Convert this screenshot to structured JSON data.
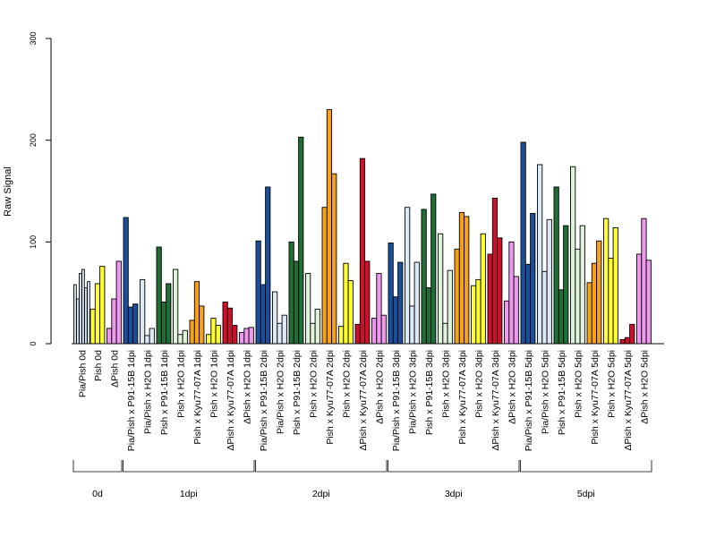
{
  "chart_data": {
    "type": "bar",
    "title": "",
    "ylabel": "Raw Signal",
    "xlabel": "",
    "ylim": [
      0,
      300
    ],
    "yticks": [
      0,
      100,
      200,
      300
    ],
    "grid": false,
    "colors": {
      "Pia/Pish": "#dce9f7",
      "Pish": "#ffff33",
      "ΔPish": "#ee99ee",
      "P91-15B": "#1a4f9c",
      "H2O_pia": "#dce9f7",
      "P91-15B_pish": "#1f6e35",
      "H2O_pish": "#e0f2dc",
      "Kyu77-07A": "#f5a21a",
      "Kyu77-07A_pish": "#ffff33",
      "Kyu77-07A_delta": "#d0102a",
      "H2O_delta": "#ee99ee"
    },
    "categories": [
      {
        "label": "Pia/Pish 0d",
        "group": "0d",
        "color": "#dce9f7",
        "values": [
          58,
          44,
          69,
          73,
          55,
          61
        ]
      },
      {
        "label": "Pish 0d",
        "group": "0d",
        "color": "#ffff33",
        "values": [
          34,
          59,
          76
        ]
      },
      {
        "label": "ΔPish 0d",
        "group": "0d",
        "color": "#ee99ee",
        "values": [
          15,
          44,
          81
        ]
      },
      {
        "label": "Pia/Pish x P91-15B 1dpi",
        "group": "1dpi",
        "color": "#1a4f9c",
        "values": [
          124,
          36,
          39
        ]
      },
      {
        "label": "Pia/Pish x H2O 1dpi",
        "group": "1dpi",
        "color": "#dce9f7",
        "values": [
          63,
          8,
          15
        ]
      },
      {
        "label": "Pish x P91-15B 1dpi",
        "group": "1dpi",
        "color": "#1f6e35",
        "values": [
          95,
          41,
          59
        ]
      },
      {
        "label": "Pish x H2O 1dpi",
        "group": "1dpi",
        "color": "#e0f2dc",
        "values": [
          73,
          9,
          13
        ]
      },
      {
        "label": "Pish x Kyu77-07A 1dpi",
        "group": "1dpi",
        "color": "#f5a21a",
        "values": [
          23,
          61,
          37
        ]
      },
      {
        "label": "Pish x H2O 1dpi",
        "group": "1dpi",
        "color": "#ffff33",
        "values": [
          9,
          25,
          18
        ]
      },
      {
        "label": "ΔPish x Kyu77-07A 1dpi",
        "group": "1dpi",
        "color": "#d0102a",
        "values": [
          41,
          35,
          18
        ]
      },
      {
        "label": "ΔPish x H2O 1dpi",
        "group": "1dpi",
        "color": "#ee99ee",
        "values": [
          11,
          15,
          16
        ]
      },
      {
        "label": "Pia/Pish x P91-15B 2dpi",
        "group": "2dpi",
        "color": "#1a4f9c",
        "values": [
          101,
          58,
          154
        ]
      },
      {
        "label": "Pia/Pish x H2O 2dpi",
        "group": "2dpi",
        "color": "#dce9f7",
        "values": [
          51,
          20,
          28
        ]
      },
      {
        "label": "Pish x P91-15B 2dpi",
        "group": "2dpi",
        "color": "#1f6e35",
        "values": [
          100,
          81,
          203
        ]
      },
      {
        "label": "Pish x H2O 2dpi",
        "group": "2dpi",
        "color": "#e0f2dc",
        "values": [
          69,
          20,
          34
        ]
      },
      {
        "label": "Pish x Kyu77-07A 2dpi",
        "group": "2dpi",
        "color": "#f5a21a",
        "values": [
          134,
          230,
          167
        ]
      },
      {
        "label": "Pish x H2O 2dpi",
        "group": "2dpi",
        "color": "#ffff33",
        "values": [
          17,
          79,
          62
        ]
      },
      {
        "label": "ΔPish x Kyu77-07A 2dpi",
        "group": "2dpi",
        "color": "#d0102a",
        "values": [
          19,
          182,
          81
        ]
      },
      {
        "label": "ΔPish x H2O 2dpi",
        "group": "2dpi",
        "color": "#ee99ee",
        "values": [
          25,
          69,
          28
        ]
      },
      {
        "label": "Pia/Pish x P91-15B 3dpi",
        "group": "3dpi",
        "color": "#1a4f9c",
        "values": [
          99,
          46,
          80
        ]
      },
      {
        "label": "Pia/Pish x H2O 3dpi",
        "group": "3dpi",
        "color": "#dce9f7",
        "values": [
          134,
          37,
          80
        ]
      },
      {
        "label": "Pish x P91-15B 3dpi",
        "group": "3dpi",
        "color": "#1f6e35",
        "values": [
          132,
          55,
          147
        ]
      },
      {
        "label": "Pish x H2O 3dpi",
        "group": "3dpi",
        "color": "#e0f2dc",
        "values": [
          108,
          20,
          72
        ]
      },
      {
        "label": "Pish x Kyu77-07A 3dpi",
        "group": "3dpi",
        "color": "#f5a21a",
        "values": [
          93,
          129,
          125
        ]
      },
      {
        "label": "Pish x H2O 3dpi",
        "group": "3dpi",
        "color": "#ffff33",
        "values": [
          57,
          63,
          108
        ]
      },
      {
        "label": "ΔPish x Kyu77-07A 3dpi",
        "group": "3dpi",
        "color": "#d0102a",
        "values": [
          88,
          143,
          104
        ]
      },
      {
        "label": "ΔPish x H2O 3dpi",
        "group": "3dpi",
        "color": "#ee99ee",
        "values": [
          42,
          100,
          66
        ]
      },
      {
        "label": "Pia/Pish x P91-15B 5dpi",
        "group": "5dpi",
        "color": "#1a4f9c",
        "values": [
          198,
          78,
          128
        ]
      },
      {
        "label": "Pia/Pish x H2O 5dpi",
        "group": "5dpi",
        "color": "#dce9f7",
        "values": [
          176,
          71,
          122
        ]
      },
      {
        "label": "Pish x P91-15B 5dpi",
        "group": "5dpi",
        "color": "#1f6e35",
        "values": [
          154,
          53,
          116
        ]
      },
      {
        "label": "Pish x H2O 5dpi",
        "group": "5dpi",
        "color": "#e0f2dc",
        "values": [
          174,
          93,
          116
        ]
      },
      {
        "label": "Pish x Kyu77-07A 5dpi",
        "group": "5dpi",
        "color": "#f5a21a",
        "values": [
          60,
          79,
          101
        ]
      },
      {
        "label": "Pish x H2O 5dpi",
        "group": "5dpi",
        "color": "#ffff33",
        "values": [
          123,
          84,
          114
        ]
      },
      {
        "label": "ΔPish x Kyu77-07A 5dpi",
        "group": "5dpi",
        "color": "#d0102a",
        "values": [
          4,
          6,
          19
        ]
      },
      {
        "label": "ΔPish x H2O 5dpi",
        "group": "5dpi",
        "color": "#ee99ee",
        "values": [
          88,
          123,
          82
        ]
      }
    ],
    "groups": [
      "0d",
      "1dpi",
      "2dpi",
      "3dpi",
      "5dpi"
    ]
  }
}
